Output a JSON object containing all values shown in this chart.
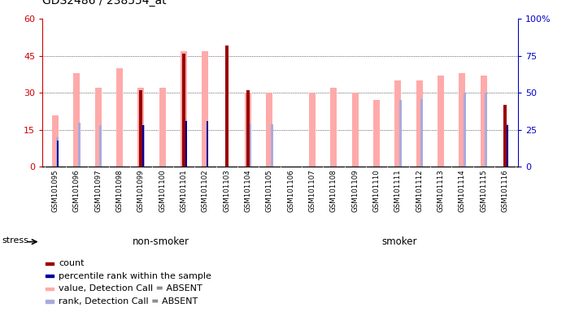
{
  "title": "GDS2486 / 238554_at",
  "samples": [
    "GSM101095",
    "GSM101096",
    "GSM101097",
    "GSM101098",
    "GSM101099",
    "GSM101100",
    "GSM101101",
    "GSM101102",
    "GSM101103",
    "GSM101104",
    "GSM101105",
    "GSM101106",
    "GSM101107",
    "GSM101108",
    "GSM101109",
    "GSM101110",
    "GSM101111",
    "GSM101112",
    "GSM101113",
    "GSM101114",
    "GSM101115",
    "GSM101116"
  ],
  "count": [
    0,
    0,
    0,
    0,
    31,
    0,
    46,
    0,
    49,
    31,
    0,
    0,
    0,
    0,
    0,
    0,
    0,
    0,
    0,
    0,
    0,
    25
  ],
  "rank_pct": [
    18,
    0,
    0,
    0,
    28,
    0,
    31,
    31,
    0,
    0,
    0,
    0,
    0,
    0,
    0,
    0,
    0,
    0,
    0,
    0,
    0,
    28
  ],
  "value_absent": [
    21,
    38,
    32,
    40,
    32,
    32,
    47,
    47,
    0,
    30,
    30,
    0,
    30,
    32,
    30,
    27,
    35,
    35,
    37,
    38,
    37,
    0
  ],
  "rank_absent": [
    20,
    30,
    28,
    0,
    28,
    0,
    32,
    0,
    0,
    29,
    29,
    0,
    0,
    0,
    0,
    0,
    45,
    46,
    0,
    50,
    50,
    29
  ],
  "non_smoker_count": 11,
  "ylim_left": [
    0,
    60
  ],
  "ylim_right": [
    0,
    100
  ],
  "yticks_left": [
    0,
    15,
    30,
    45,
    60
  ],
  "yticks_right": [
    0,
    25,
    50,
    75,
    100
  ],
  "count_color": "#990000",
  "rank_color": "#000099",
  "value_absent_color": "#ffaaaa",
  "rank_absent_color": "#aaaadd",
  "non_smoker_color": "#aaddaa",
  "smoker_color": "#55cc55",
  "bg_color": "#dddddd",
  "left_axis_color": "#cc0000",
  "right_axis_color": "#0000cc"
}
